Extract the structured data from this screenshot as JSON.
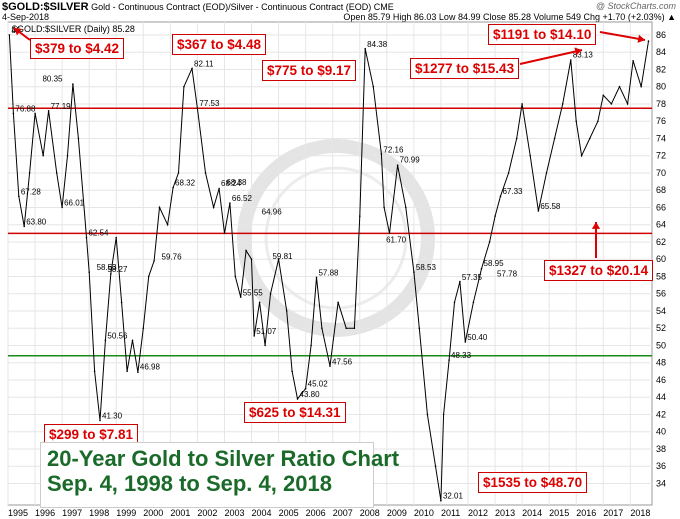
{
  "header": {
    "symbol": "$GOLD:$SILVER",
    "description": "Gold - Continuous Contract (EOD)/Silver - Continuous Contract (EOD) CME",
    "date": "4-Sep-2018",
    "source": "@ StockCharts.com",
    "ohlc": "Open 85.79  High 86.03  Low 84.99  Close 85.28  Volume 549  Chg +1.70 (+2.03%) ▲",
    "legend": "$GOLD:$SILVER (Daily) 85.28"
  },
  "callouts": [
    {
      "id": "c1",
      "text": "$379 to $4.42"
    },
    {
      "id": "c2",
      "text": "$367 to $4.48"
    },
    {
      "id": "c3",
      "text": "$775 to $9.17"
    },
    {
      "id": "c4",
      "text": "$1277 to $15.43"
    },
    {
      "id": "c5",
      "text": "$1191 to $14.10"
    },
    {
      "id": "c6",
      "text": "$1327 to $20.14"
    },
    {
      "id": "c7",
      "text": "$299 to $7.81"
    },
    {
      "id": "c8",
      "text": "$625 to $14.31"
    },
    {
      "id": "c9",
      "text": "$1535 to $48.70"
    }
  ],
  "big_title": {
    "line1": "20-Year Gold to Silver Ratio Chart",
    "line2": "Sep. 4, 1998 to Sep. 4, 2018"
  },
  "colors": {
    "price": "#000000",
    "red_line": "#d00000",
    "green_line": "#1a8a1a",
    "callout_text": "#dd0000",
    "title_text": "#1a6a2a"
  },
  "chart_data": {
    "type": "line",
    "title": "20-Year Gold to Silver Ratio Chart",
    "series": [
      {
        "name": "$GOLD:$SILVER (Daily)",
        "x": [
          1995.05,
          1995.2,
          1995.4,
          1995.6,
          1995.8,
          1996.0,
          1996.3,
          1996.5,
          1996.8,
          1997.0,
          1997.2,
          1997.4,
          1997.6,
          1997.9,
          1998.0,
          1998.2,
          1998.4,
          1998.6,
          1998.8,
          1999.0,
          1999.2,
          1999.4,
          1999.6,
          1999.8,
          2000.0,
          2000.2,
          2000.4,
          2000.6,
          2000.9,
          2001.1,
          2001.3,
          2001.5,
          2001.8,
          2002.0,
          2002.3,
          2002.6,
          2002.8,
          2003.0,
          2003.2,
          2003.4,
          2003.6,
          2003.8,
          2004.0,
          2004.1,
          2004.3,
          2004.5,
          2004.7,
          2005.0,
          2005.3,
          2005.5,
          2005.7,
          2006.0,
          2006.2,
          2006.4,
          2006.6,
          2006.9,
          2007.2,
          2007.5,
          2007.8,
          2008.0,
          2008.2,
          2008.5,
          2008.8,
          2008.9,
          2009.1,
          2009.4,
          2009.7,
          2010.0,
          2010.2,
          2010.5,
          2010.8,
          2011.0,
          2011.1,
          2011.3,
          2011.5,
          2011.7,
          2011.9,
          2012.2,
          2012.5,
          2012.8,
          2013.0,
          2013.2,
          2013.5,
          2013.8,
          2014.0,
          2014.3,
          2014.6,
          2014.9,
          2015.2,
          2015.5,
          2015.8,
          2016.0,
          2016.2,
          2016.5,
          2016.8,
          2017.0,
          2017.3,
          2017.6,
          2017.9,
          2018.1,
          2018.4,
          2018.67
        ],
        "values": [
          86.0,
          76.9,
          67.3,
          63.8,
          70.0,
          76.9,
          72.0,
          77.2,
          70.0,
          66.0,
          72.0,
          80.3,
          74.0,
          62.5,
          58.5,
          47.0,
          41.3,
          50.6,
          58.3,
          62.5,
          55.0,
          47.0,
          50.6,
          46.9,
          52.0,
          58.0,
          59.8,
          66.0,
          64.0,
          68.3,
          70.0,
          80.0,
          82.1,
          77.5,
          70.0,
          66.0,
          68.2,
          63.0,
          66.5,
          58.0,
          55.6,
          61.0,
          60.0,
          51.1,
          55.0,
          50.0,
          56.0,
          60.0,
          54.0,
          47.0,
          43.8,
          45.0,
          50.0,
          57.9,
          52.0,
          47.6,
          55.0,
          52.0,
          52.0,
          65.0,
          84.4,
          80.0,
          72.2,
          66.0,
          63.0,
          70.9,
          66.0,
          58.5,
          52.0,
          42.0,
          36.0,
          32.0,
          42.0,
          48.3,
          55.0,
          57.4,
          50.4,
          55.0,
          58.9,
          62.0,
          65.0,
          67.3,
          70.0,
          74.0,
          78.0,
          72.0,
          65.6,
          70.0,
          74.0,
          78.0,
          83.1,
          76.0,
          72.0,
          74.0,
          76.0,
          79.0,
          78.0,
          80.0,
          78.0,
          83.0,
          80.0,
          85.28
        ]
      }
    ],
    "annotations": [
      {
        "x": 1995.05,
        "y": 86.0,
        "label": "86"
      },
      {
        "x": 1995.2,
        "y": 76.88,
        "label": "76.88"
      },
      {
        "x": 1995.4,
        "y": 67.28,
        "label": "67.28"
      },
      {
        "x": 1995.6,
        "y": 63.8,
        "label": "63.80"
      },
      {
        "x": 1996.5,
        "y": 77.19,
        "label": "77.19"
      },
      {
        "x": 1996.2,
        "y": 80.35,
        "label": "80.35"
      },
      {
        "x": 1997.0,
        "y": 66.01,
        "label": "66.01"
      },
      {
        "x": 1997.9,
        "y": 62.54,
        "label": "62.54"
      },
      {
        "x": 1998.2,
        "y": 58.53,
        "label": "58.53"
      },
      {
        "x": 1998.6,
        "y": 58.27,
        "label": "58.27"
      },
      {
        "x": 1998.4,
        "y": 41.3,
        "label": "41.30"
      },
      {
        "x": 1998.6,
        "y": 50.56,
        "label": "50.56"
      },
      {
        "x": 1999.8,
        "y": 46.98,
        "label": "46.98"
      },
      {
        "x": 2000.6,
        "y": 59.76,
        "label": "59.76"
      },
      {
        "x": 2001.1,
        "y": 68.32,
        "label": "68.32"
      },
      {
        "x": 2001.8,
        "y": 82.11,
        "label": "82.11"
      },
      {
        "x": 2002.0,
        "y": 77.53,
        "label": "77.53"
      },
      {
        "x": 2002.8,
        "y": 68.24,
        "label": "68.24"
      },
      {
        "x": 2003.0,
        "y": 68.38,
        "label": "68.38"
      },
      {
        "x": 2003.2,
        "y": 66.52,
        "label": "66.52"
      },
      {
        "x": 2004.1,
        "y": 51.07,
        "label": "51.07"
      },
      {
        "x": 2003.6,
        "y": 55.55,
        "label": "55.55"
      },
      {
        "x": 2004.3,
        "y": 64.96,
        "label": "64.96"
      },
      {
        "x": 2004.7,
        "y": 59.81,
        "label": "59.81"
      },
      {
        "x": 2005.7,
        "y": 43.8,
        "label": "43.80"
      },
      {
        "x": 2006.0,
        "y": 45.02,
        "label": "45.02"
      },
      {
        "x": 2006.4,
        "y": 57.88,
        "label": "57.88"
      },
      {
        "x": 2006.9,
        "y": 47.56,
        "label": "47.56"
      },
      {
        "x": 2008.2,
        "y": 84.38,
        "label": "84.38"
      },
      {
        "x": 2008.8,
        "y": 72.16,
        "label": "72.16"
      },
      {
        "x": 2009.4,
        "y": 70.99,
        "label": "70.99"
      },
      {
        "x": 2008.9,
        "y": 61.7,
        "label": "61.70"
      },
      {
        "x": 2010.0,
        "y": 58.53,
        "label": "58.53"
      },
      {
        "x": 2011.0,
        "y": 32.01,
        "label": "32.01"
      },
      {
        "x": 2011.3,
        "y": 48.33,
        "label": "48.33"
      },
      {
        "x": 2011.7,
        "y": 57.35,
        "label": "57.35"
      },
      {
        "x": 2012.5,
        "y": 58.95,
        "label": "58.95"
      },
      {
        "x": 2011.9,
        "y": 50.4,
        "label": "50.40"
      },
      {
        "x": 2013.0,
        "y": 57.78,
        "label": "57.78"
      },
      {
        "x": 2013.2,
        "y": 67.33,
        "label": "67.33"
      },
      {
        "x": 2014.6,
        "y": 65.58,
        "label": "65.58"
      },
      {
        "x": 2015.8,
        "y": 83.13,
        "label": "83.13"
      }
    ],
    "hlines": [
      {
        "y": 77.5,
        "color": "red"
      },
      {
        "y": 63.0,
        "color": "red"
      },
      {
        "y": 48.8,
        "color": "green"
      }
    ],
    "xlabel": "",
    "ylabel": "",
    "x_ticks": [
      "1995",
      "1996",
      "1997",
      "1998",
      "1999",
      "2000",
      "2001",
      "2002",
      "2003",
      "2004",
      "2005",
      "2006",
      "2007",
      "2008",
      "2009",
      "2010",
      "2011",
      "2012",
      "2013",
      "2014",
      "2015",
      "2016",
      "2017",
      "2018"
    ],
    "y_ticks": [
      34,
      36,
      38,
      40,
      42,
      44,
      46,
      48,
      50,
      52,
      54,
      56,
      58,
      60,
      62,
      64,
      66,
      68,
      70,
      72,
      74,
      76,
      78,
      80,
      82,
      84,
      86
    ],
    "xlim": [
      1995.0,
      2018.8
    ],
    "ylim": [
      31.5,
      87.5
    ],
    "grid": true,
    "axis_side": "right"
  }
}
